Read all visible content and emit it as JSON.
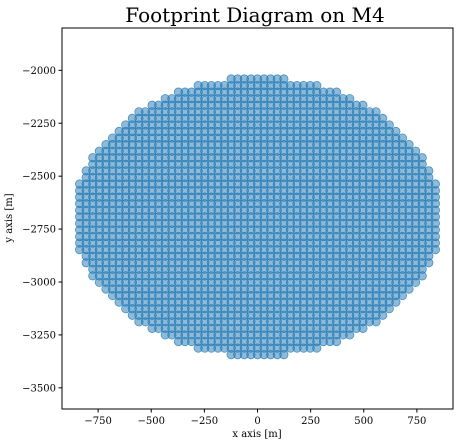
{
  "chart_data": {
    "type": "scatter",
    "title": "Footprint Diagram on M4",
    "xlabel": "x axis [m]",
    "ylabel": "y axis [m]",
    "xlim": [
      -920,
      920
    ],
    "ylim": [
      -3600,
      -1800
    ],
    "xticks": [
      -750,
      -500,
      -250,
      0,
      250,
      500,
      750
    ],
    "yticks": [
      -3500,
      -3250,
      -3000,
      -2750,
      -2500,
      -2250,
      -2000
    ],
    "grid": false,
    "legend": "none",
    "marker_color": "#1f77b4",
    "marker_alpha": 0.5,
    "series": [
      {
        "footprint": "elliptical grid of overlapping circular markers",
        "center": [
          0,
          -2692
        ],
        "semi_axis_x": 862,
        "semi_axis_y": 658,
        "spacing_x": 31,
        "spacing_y": 31
      }
    ]
  }
}
